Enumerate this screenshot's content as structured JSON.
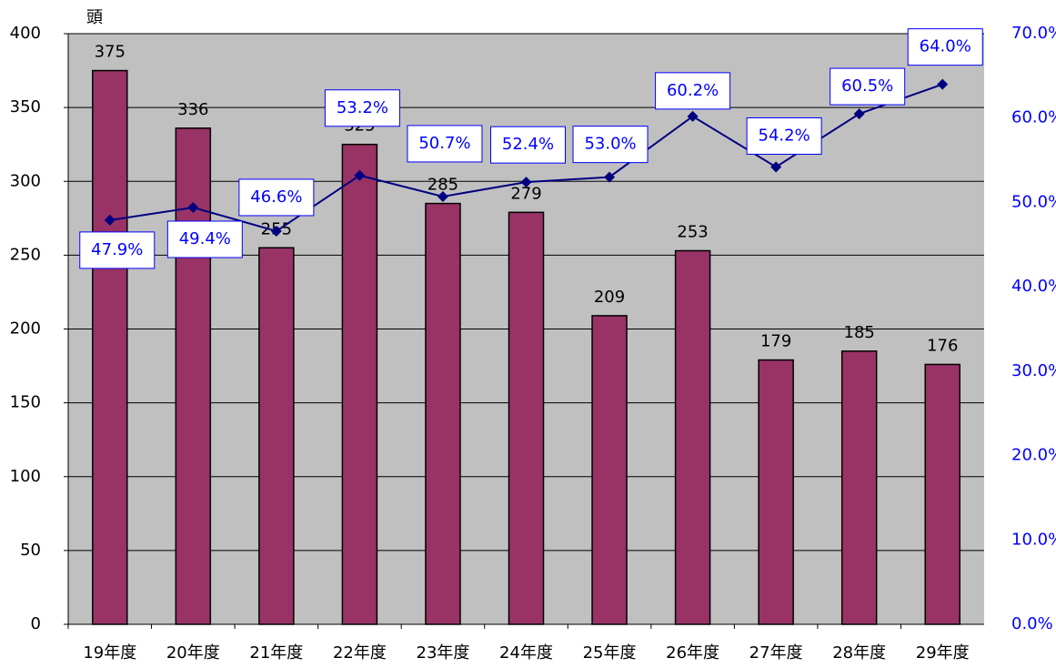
{
  "chart_data": {
    "type": "bar-line",
    "y_label": "頭",
    "categories": [
      "19年度",
      "20年度",
      "21年度",
      "22年度",
      "23年度",
      "24年度",
      "25年度",
      "26年度",
      "27年度",
      "28年度",
      "29年度"
    ],
    "series": [
      {
        "color": "#993366",
        "values": [
          375,
          336,
          255,
          325,
          285,
          279,
          209,
          253,
          179,
          185,
          176
        ]
      },
      {
        "color": "#000080",
        "axis": "y2",
        "values": [
          47.9,
          49.4,
          46.6,
          53.2,
          50.7,
          52.4,
          53.0,
          60.2,
          54.2,
          60.5,
          64.0
        ],
        "value_labels": [
          "47.9%",
          "49.4%",
          "46.6%",
          "53.2%",
          "50.7%",
          "52.4%",
          "53.0%",
          "60.2%",
          "54.2%",
          "60.5%",
          "64.0%"
        ]
      }
    ],
    "ylim": [
      0,
      400
    ],
    "yticks": [
      0,
      50,
      100,
      150,
      200,
      250,
      300,
      350,
      400
    ],
    "y2lim": [
      0,
      70
    ],
    "y2ticks": [
      {
        "value": 0,
        "label": "0.0%"
      },
      {
        "value": 10,
        "label": "10.0%"
      },
      {
        "value": 20,
        "label": "20.0%"
      },
      {
        "value": 30,
        "label": "30.0%"
      },
      {
        "value": 40,
        "label": "40.0%"
      },
      {
        "value": 50,
        "label": "50.0%"
      },
      {
        "value": 60,
        "label": "60.0%"
      },
      {
        "value": 70,
        "label": "70.0%"
      }
    ],
    "grid": true
  }
}
